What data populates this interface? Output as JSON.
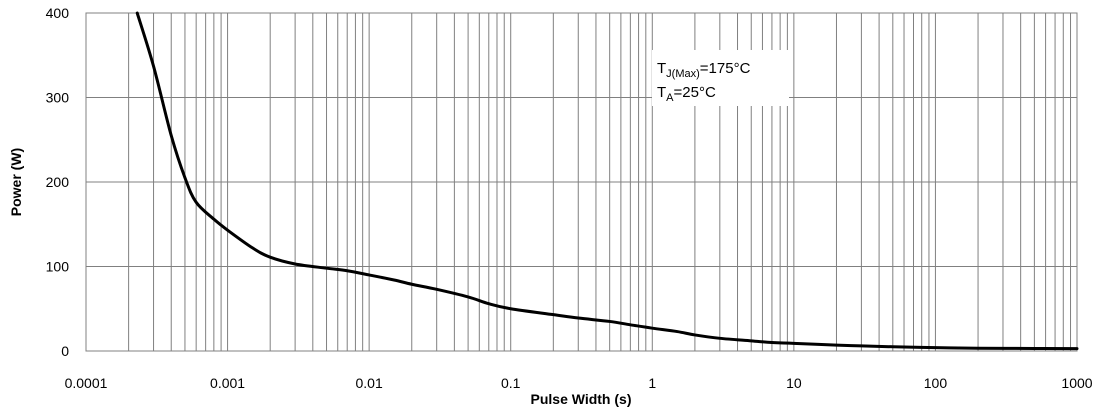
{
  "chart_data": {
    "type": "line",
    "xlabel": "Pulse Width (s)",
    "ylabel": "Power (W)",
    "x_scale": "log",
    "xlim": [
      0.0001,
      1000
    ],
    "ylim": [
      0,
      400
    ],
    "grid": true,
    "x_ticks": [
      "0.0001",
      "0.001",
      "0.01",
      "0.1",
      "1",
      "10",
      "100",
      "1000"
    ],
    "y_ticks": [
      "0",
      "100",
      "200",
      "300",
      "400"
    ],
    "annotation": {
      "line1": {
        "main": "T",
        "sub": "J(Max)",
        "rest": "=175°C"
      },
      "line2": {
        "main": "T",
        "sub": "A",
        "rest": "=25°C"
      }
    },
    "series": [
      {
        "color": "#000000",
        "points": [
          [
            0.00023,
            400
          ],
          [
            0.0003,
            337
          ],
          [
            0.0004,
            255
          ],
          [
            0.0005,
            205
          ],
          [
            0.0006,
            176
          ],
          [
            0.0008,
            156
          ],
          [
            0.001,
            143
          ],
          [
            0.0015,
            122
          ],
          [
            0.002,
            111
          ],
          [
            0.003,
            103
          ],
          [
            0.005,
            98
          ],
          [
            0.007,
            95
          ],
          [
            0.01,
            90
          ],
          [
            0.015,
            84
          ],
          [
            0.02,
            79
          ],
          [
            0.03,
            73
          ],
          [
            0.05,
            64
          ],
          [
            0.07,
            56
          ],
          [
            0.1,
            50
          ],
          [
            0.2,
            43
          ],
          [
            0.3,
            39
          ],
          [
            0.5,
            35
          ],
          [
            0.7,
            31
          ],
          [
            1,
            27
          ],
          [
            1.5,
            23
          ],
          [
            2,
            19
          ],
          [
            3,
            15
          ],
          [
            5,
            12
          ],
          [
            7,
            10
          ],
          [
            10,
            9
          ],
          [
            20,
            7
          ],
          [
            30,
            6
          ],
          [
            50,
            5
          ],
          [
            100,
            4
          ],
          [
            200,
            3.2
          ],
          [
            500,
            3
          ],
          [
            1000,
            2.8
          ]
        ]
      }
    ]
  }
}
